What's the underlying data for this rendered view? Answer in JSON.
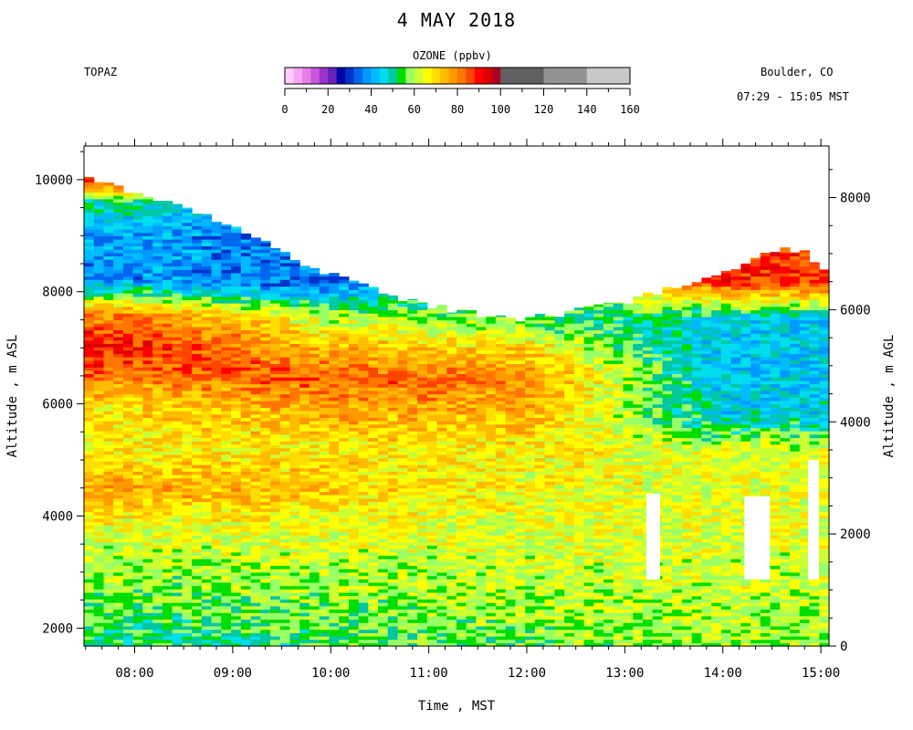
{
  "header": {
    "title": "4 MAY 2018",
    "site": "TOPAZ",
    "location": "Boulder, CO",
    "time_range": "07:29 - 15:05 MST"
  },
  "colorbar": {
    "title": "OZONE (ppbv)",
    "ticks": [
      "0",
      "20",
      "40",
      "60",
      "80",
      "100",
      "120",
      "140",
      "160"
    ],
    "range": [
      0,
      160
    ],
    "bins": [
      {
        "from": 0,
        "to": 4,
        "color": "#ffccff"
      },
      {
        "from": 4,
        "to": 8,
        "color": "#f7a6f7"
      },
      {
        "from": 8,
        "to": 12,
        "color": "#e680e6"
      },
      {
        "from": 12,
        "to": 16,
        "color": "#cc55dd"
      },
      {
        "from": 16,
        "to": 20,
        "color": "#9933cc"
      },
      {
        "from": 20,
        "to": 24,
        "color": "#6622bb"
      },
      {
        "from": 24,
        "to": 28,
        "color": "#0000aa"
      },
      {
        "from": 28,
        "to": 32,
        "color": "#0033cc"
      },
      {
        "from": 32,
        "to": 36,
        "color": "#0066ee"
      },
      {
        "from": 36,
        "to": 40,
        "color": "#0099ff"
      },
      {
        "from": 40,
        "to": 44,
        "color": "#00bbff"
      },
      {
        "from": 44,
        "to": 48,
        "color": "#00ddee"
      },
      {
        "from": 48,
        "to": 52,
        "color": "#00c8a0"
      },
      {
        "from": 52,
        "to": 56,
        "color": "#00dd00"
      },
      {
        "from": 56,
        "to": 60,
        "color": "#99ff66"
      },
      {
        "from": 60,
        "to": 64,
        "color": "#ccff33"
      },
      {
        "from": 64,
        "to": 68,
        "color": "#ffff00"
      },
      {
        "from": 68,
        "to": 72,
        "color": "#ffdd00"
      },
      {
        "from": 72,
        "to": 76,
        "color": "#ffbb00"
      },
      {
        "from": 76,
        "to": 80,
        "color": "#ff9900"
      },
      {
        "from": 80,
        "to": 84,
        "color": "#ff7700"
      },
      {
        "from": 84,
        "to": 88,
        "color": "#ff4400"
      },
      {
        "from": 88,
        "to": 92,
        "color": "#ff0000"
      },
      {
        "from": 92,
        "to": 96,
        "color": "#dd0000"
      },
      {
        "from": 96,
        "to": 100,
        "color": "#aa0022"
      },
      {
        "from": 100,
        "to": 120,
        "color": "#606060"
      },
      {
        "from": 120,
        "to": 140,
        "color": "#939393"
      },
      {
        "from": 140,
        "to": 160,
        "color": "#c8c8c8"
      }
    ]
  },
  "chart_data": {
    "type": "heatmap",
    "title": "4 MAY 2018",
    "variable": "OZONE (ppbv)",
    "xlabel": "Time , MST",
    "ylabel_left": "Altitude , m ASL",
    "ylabel_right": "Altitude , m AGL",
    "x_range_hours": [
      7.483,
      15.083
    ],
    "y_range_asl": [
      1680,
      10600
    ],
    "y_range_agl": [
      0,
      8920
    ],
    "x_ticks": [
      "08:00",
      "09:00",
      "10:00",
      "11:00",
      "12:00",
      "13:00",
      "14:00",
      "15:00"
    ],
    "x_tick_values": [
      8,
      9,
      10,
      11,
      12,
      13,
      14,
      15
    ],
    "y_ticks_left": [
      "2000",
      "4000",
      "6000",
      "8000",
      "10000"
    ],
    "y_tick_values_left": [
      2000,
      4000,
      6000,
      8000,
      10000
    ],
    "y_ticks_right": [
      "0",
      "2000",
      "4000",
      "6000",
      "8000"
    ],
    "y_tick_values_right": [
      0,
      2000,
      4000,
      6000,
      8000
    ],
    "data_top_asl": [
      [
        7.5,
        10050
      ],
      [
        8.0,
        9750
      ],
      [
        8.5,
        9500
      ],
      [
        9.0,
        9150
      ],
      [
        9.5,
        8700
      ],
      [
        10.0,
        8300
      ],
      [
        10.5,
        8000
      ],
      [
        11.0,
        7750
      ],
      [
        11.5,
        7600
      ],
      [
        12.0,
        7520
      ],
      [
        12.5,
        7650
      ],
      [
        13.0,
        7800
      ],
      [
        13.5,
        8100
      ],
      [
        14.0,
        8350
      ],
      [
        14.5,
        8750
      ],
      [
        14.8,
        8750
      ],
      [
        15.0,
        8450
      ]
    ],
    "ozone_profile_ppbv_by_altitude_asl": [
      {
        "time": 8.0,
        "profile": [
          [
            1800,
            52
          ],
          [
            2500,
            56
          ],
          [
            3200,
            60
          ],
          [
            3900,
            66
          ],
          [
            4500,
            77
          ],
          [
            5200,
            67
          ],
          [
            6000,
            70
          ],
          [
            6600,
            84
          ],
          [
            7000,
            90
          ],
          [
            7600,
            80
          ],
          [
            8200,
            38
          ],
          [
            9000,
            40
          ],
          [
            9600,
            50
          ],
          [
            10000,
            90
          ]
        ]
      },
      {
        "time": 10.0,
        "profile": [
          [
            1800,
            54
          ],
          [
            2500,
            58
          ],
          [
            3200,
            61
          ],
          [
            4000,
            66
          ],
          [
            4500,
            72
          ],
          [
            5200,
            68
          ],
          [
            6000,
            78
          ],
          [
            6500,
            84
          ],
          [
            7000,
            74
          ],
          [
            7600,
            60
          ],
          [
            8100,
            35
          ]
        ]
      },
      {
        "time": 12.0,
        "profile": [
          [
            1800,
            58
          ],
          [
            2500,
            60
          ],
          [
            3200,
            62
          ],
          [
            4000,
            65
          ],
          [
            5000,
            67
          ],
          [
            5800,
            73
          ],
          [
            6400,
            80
          ],
          [
            7000,
            70
          ],
          [
            7500,
            56
          ]
        ]
      },
      {
        "time": 14.0,
        "profile": [
          [
            1800,
            59
          ],
          [
            2500,
            61
          ],
          [
            3500,
            63
          ],
          [
            4500,
            65
          ],
          [
            5200,
            62
          ],
          [
            5800,
            46
          ],
          [
            6600,
            43
          ],
          [
            7500,
            44
          ],
          [
            8200,
            88
          ]
        ]
      }
    ],
    "missing_data_gaps": [
      {
        "x_start": 13.22,
        "x_end": 13.36,
        "y_bottom_asl": 2870,
        "y_top_asl": 4400
      },
      {
        "x_start": 14.22,
        "x_end": 14.48,
        "y_bottom_asl": 2870,
        "y_top_asl": 4350
      },
      {
        "x_start": 14.87,
        "x_end": 14.98,
        "y_bottom_asl": 2870,
        "y_top_asl": 5000
      }
    ]
  }
}
